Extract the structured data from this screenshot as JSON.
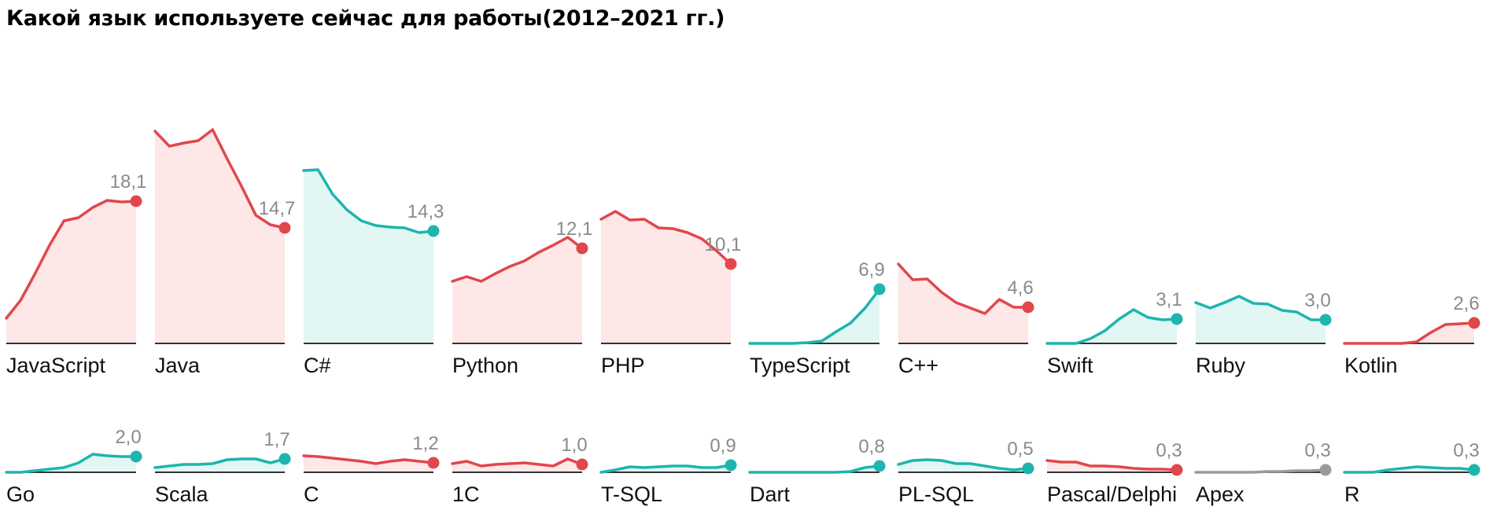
{
  "title": "Какой язык используете сейчас для работы(2012–2021 гг.)",
  "colors": {
    "red": "#e0474c",
    "teal": "#1db5ad",
    "gray": "#9a9a9a",
    "fill_red": "#fde7e7",
    "fill_teal": "#e2f6f4",
    "baseline": "#333333",
    "value_label": "#8a8a8a"
  },
  "chart_data": [
    {
      "type": "area",
      "layout": "small-multiples",
      "x": [
        2012,
        2013,
        2014,
        2015,
        2016,
        2017,
        2018,
        2019,
        2020,
        2021
      ],
      "scale_max": 28,
      "grid": false,
      "series": [
        {
          "name": "JavaScript",
          "color": "red",
          "label": "18,1",
          "values": [
            3.2,
            5.5,
            8.9,
            12.5,
            15.6,
            16.0,
            17.3,
            18.2,
            18.0,
            18.1
          ]
        },
        {
          "name": "Java",
          "color": "red",
          "label": "14,7",
          "values": [
            27.0,
            25.1,
            25.5,
            25.8,
            27.2,
            23.5,
            20.0,
            16.3,
            15.1,
            14.7
          ]
        },
        {
          "name": "C#",
          "color": "teal",
          "label": "14,3",
          "values": [
            22.0,
            22.1,
            19.0,
            17.0,
            15.6,
            15.0,
            14.8,
            14.7,
            14.1,
            14.3
          ]
        },
        {
          "name": "Python",
          "color": "red",
          "label": "12,1",
          "values": [
            7.9,
            8.5,
            7.9,
            8.9,
            9.8,
            10.5,
            11.6,
            12.5,
            13.5,
            12.1
          ]
        },
        {
          "name": "PHP",
          "color": "red",
          "label": "10,1",
          "values": [
            15.8,
            16.8,
            15.7,
            15.8,
            14.7,
            14.6,
            14.1,
            13.3,
            11.8,
            10.1
          ]
        },
        {
          "name": "TypeScript",
          "color": "teal",
          "label": "6,9",
          "values": [
            0.0,
            0.0,
            0.0,
            0.0,
            0.1,
            0.3,
            1.5,
            2.6,
            4.5,
            6.9
          ]
        },
        {
          "name": "C++",
          "color": "red",
          "label": "4,6",
          "values": [
            10.1,
            8.1,
            8.2,
            6.5,
            5.2,
            4.5,
            3.8,
            5.6,
            4.6,
            4.6
          ]
        },
        {
          "name": "Swift",
          "color": "teal",
          "label": "3,1",
          "values": [
            0.0,
            0.0,
            0.0,
            0.6,
            1.6,
            3.1,
            4.3,
            3.3,
            3.0,
            3.1
          ]
        },
        {
          "name": "Ruby",
          "color": "teal",
          "label": "3,0",
          "values": [
            5.2,
            4.5,
            5.2,
            6.0,
            5.1,
            5.0,
            4.2,
            4.0,
            3.0,
            3.0
          ]
        },
        {
          "name": "Kotlin",
          "color": "red",
          "label": "2,6",
          "values": [
            0.0,
            0.0,
            0.0,
            0.0,
            0.0,
            0.2,
            1.4,
            2.4,
            2.5,
            2.6
          ]
        },
        {
          "name": "Go",
          "color": "teal",
          "label": "2,0",
          "values": [
            0.0,
            0.0,
            0.2,
            0.4,
            0.6,
            1.2,
            2.3,
            2.1,
            2.0,
            2.0
          ]
        },
        {
          "name": "Scala",
          "color": "teal",
          "label": "1,7",
          "values": [
            0.6,
            0.8,
            1.0,
            1.0,
            1.1,
            1.6,
            1.7,
            1.7,
            1.2,
            1.7
          ]
        },
        {
          "name": "C",
          "color": "red",
          "label": "1,2",
          "values": [
            2.1,
            2.0,
            1.8,
            1.6,
            1.4,
            1.1,
            1.4,
            1.6,
            1.4,
            1.2
          ]
        },
        {
          "name": "1C",
          "color": "red",
          "label": "1,0",
          "values": [
            1.1,
            1.4,
            0.8,
            1.0,
            1.1,
            1.2,
            1.0,
            0.8,
            1.7,
            1.0
          ]
        },
        {
          "name": "T-SQL",
          "color": "teal",
          "label": "0,9",
          "values": [
            0.0,
            0.3,
            0.7,
            0.6,
            0.7,
            0.8,
            0.8,
            0.6,
            0.6,
            0.9
          ]
        },
        {
          "name": "Dart",
          "color": "teal",
          "label": "0,8",
          "values": [
            0.0,
            0.0,
            0.0,
            0.0,
            0.0,
            0.0,
            0.0,
            0.1,
            0.6,
            0.8
          ]
        },
        {
          "name": "PL-SQL",
          "color": "teal",
          "label": "0,5",
          "values": [
            1.0,
            1.5,
            1.6,
            1.5,
            1.1,
            1.1,
            0.8,
            0.5,
            0.3,
            0.5
          ]
        },
        {
          "name": "Pascal/Delphi",
          "color": "red",
          "label": "0,3",
          "values": [
            1.5,
            1.3,
            1.3,
            0.8,
            0.8,
            0.7,
            0.5,
            0.4,
            0.4,
            0.3
          ]
        },
        {
          "name": "Apex",
          "color": "gray",
          "label": "0,3",
          "values": [
            0.0,
            0.0,
            0.0,
            0.0,
            0.0,
            0.1,
            0.1,
            0.2,
            0.2,
            0.3
          ]
        },
        {
          "name": "R",
          "color": "teal",
          "label": "0,3",
          "values": [
            0.0,
            0.0,
            0.0,
            0.3,
            0.5,
            0.7,
            0.6,
            0.5,
            0.5,
            0.3
          ]
        }
      ]
    }
  ]
}
